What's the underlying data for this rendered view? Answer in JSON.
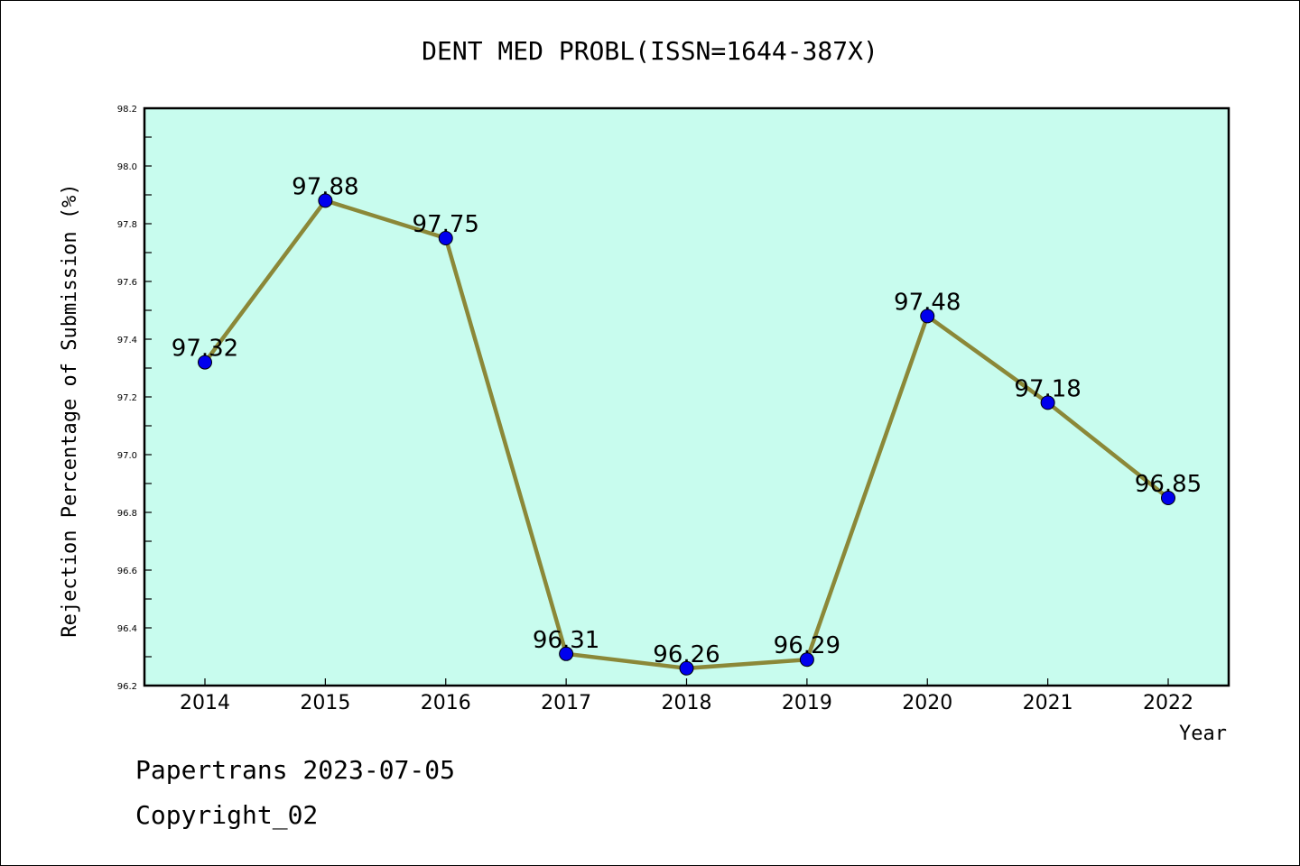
{
  "chart_data": {
    "type": "line",
    "title": "DENT MED PROBL(ISSN=1644-387X)",
    "xlabel": "Year",
    "ylabel": "Rejection Percentage of Submission (%)",
    "categories": [
      "2014",
      "2015",
      "2016",
      "2017",
      "2018",
      "2019",
      "2020",
      "2021",
      "2022"
    ],
    "values": [
      97.32,
      97.88,
      97.75,
      96.31,
      96.26,
      96.29,
      97.48,
      97.18,
      96.85
    ],
    "data_labels": [
      "97.32",
      "97.88",
      "97.75",
      "96.31",
      "96.26",
      "96.29",
      "97.48",
      "97.18",
      "96.85"
    ],
    "ylim": [
      96.2,
      98.2
    ],
    "yticks": [
      "96.2",
      "96.4",
      "96.6",
      "96.8",
      "97.0",
      "97.2",
      "97.4",
      "97.6",
      "97.8",
      "98.0",
      "98.2"
    ],
    "grid": false,
    "colors": {
      "plot_background": "#c8fcee",
      "line": "#8b8838",
      "marker": "#0000ee"
    }
  },
  "footer": {
    "line1": "Papertrans 2023-07-05",
    "line2": "Copyright_02"
  }
}
